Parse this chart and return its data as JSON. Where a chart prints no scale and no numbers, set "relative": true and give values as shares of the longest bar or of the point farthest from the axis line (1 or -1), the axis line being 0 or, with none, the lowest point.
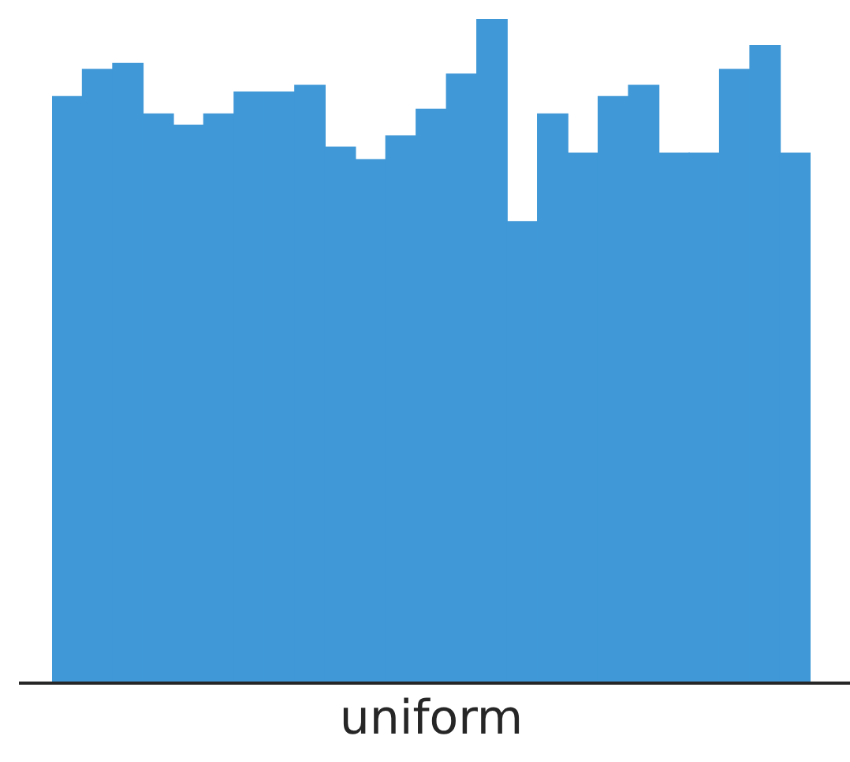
{
  "chart_data": {
    "type": "bar",
    "relative": true,
    "xlabel": "uniform",
    "color": "#4098d7",
    "grid": false,
    "legend": false,
    "tick_labels": false,
    "categories": [
      null,
      null,
      null,
      null,
      null,
      null,
      null,
      null,
      null,
      null,
      null,
      null,
      null,
      null,
      null,
      null,
      null,
      null,
      null,
      null,
      null,
      null,
      null,
      null,
      null
    ],
    "values": [
      0.883,
      0.924,
      0.933,
      0.857,
      0.84,
      0.857,
      0.89,
      0.89,
      0.9,
      0.807,
      0.788,
      0.824,
      0.864,
      0.917,
      1,
      0.695,
      0.857,
      0.798,
      0.883,
      0.9,
      0.798,
      0.798,
      0.924,
      0.96,
      0.798
    ]
  }
}
